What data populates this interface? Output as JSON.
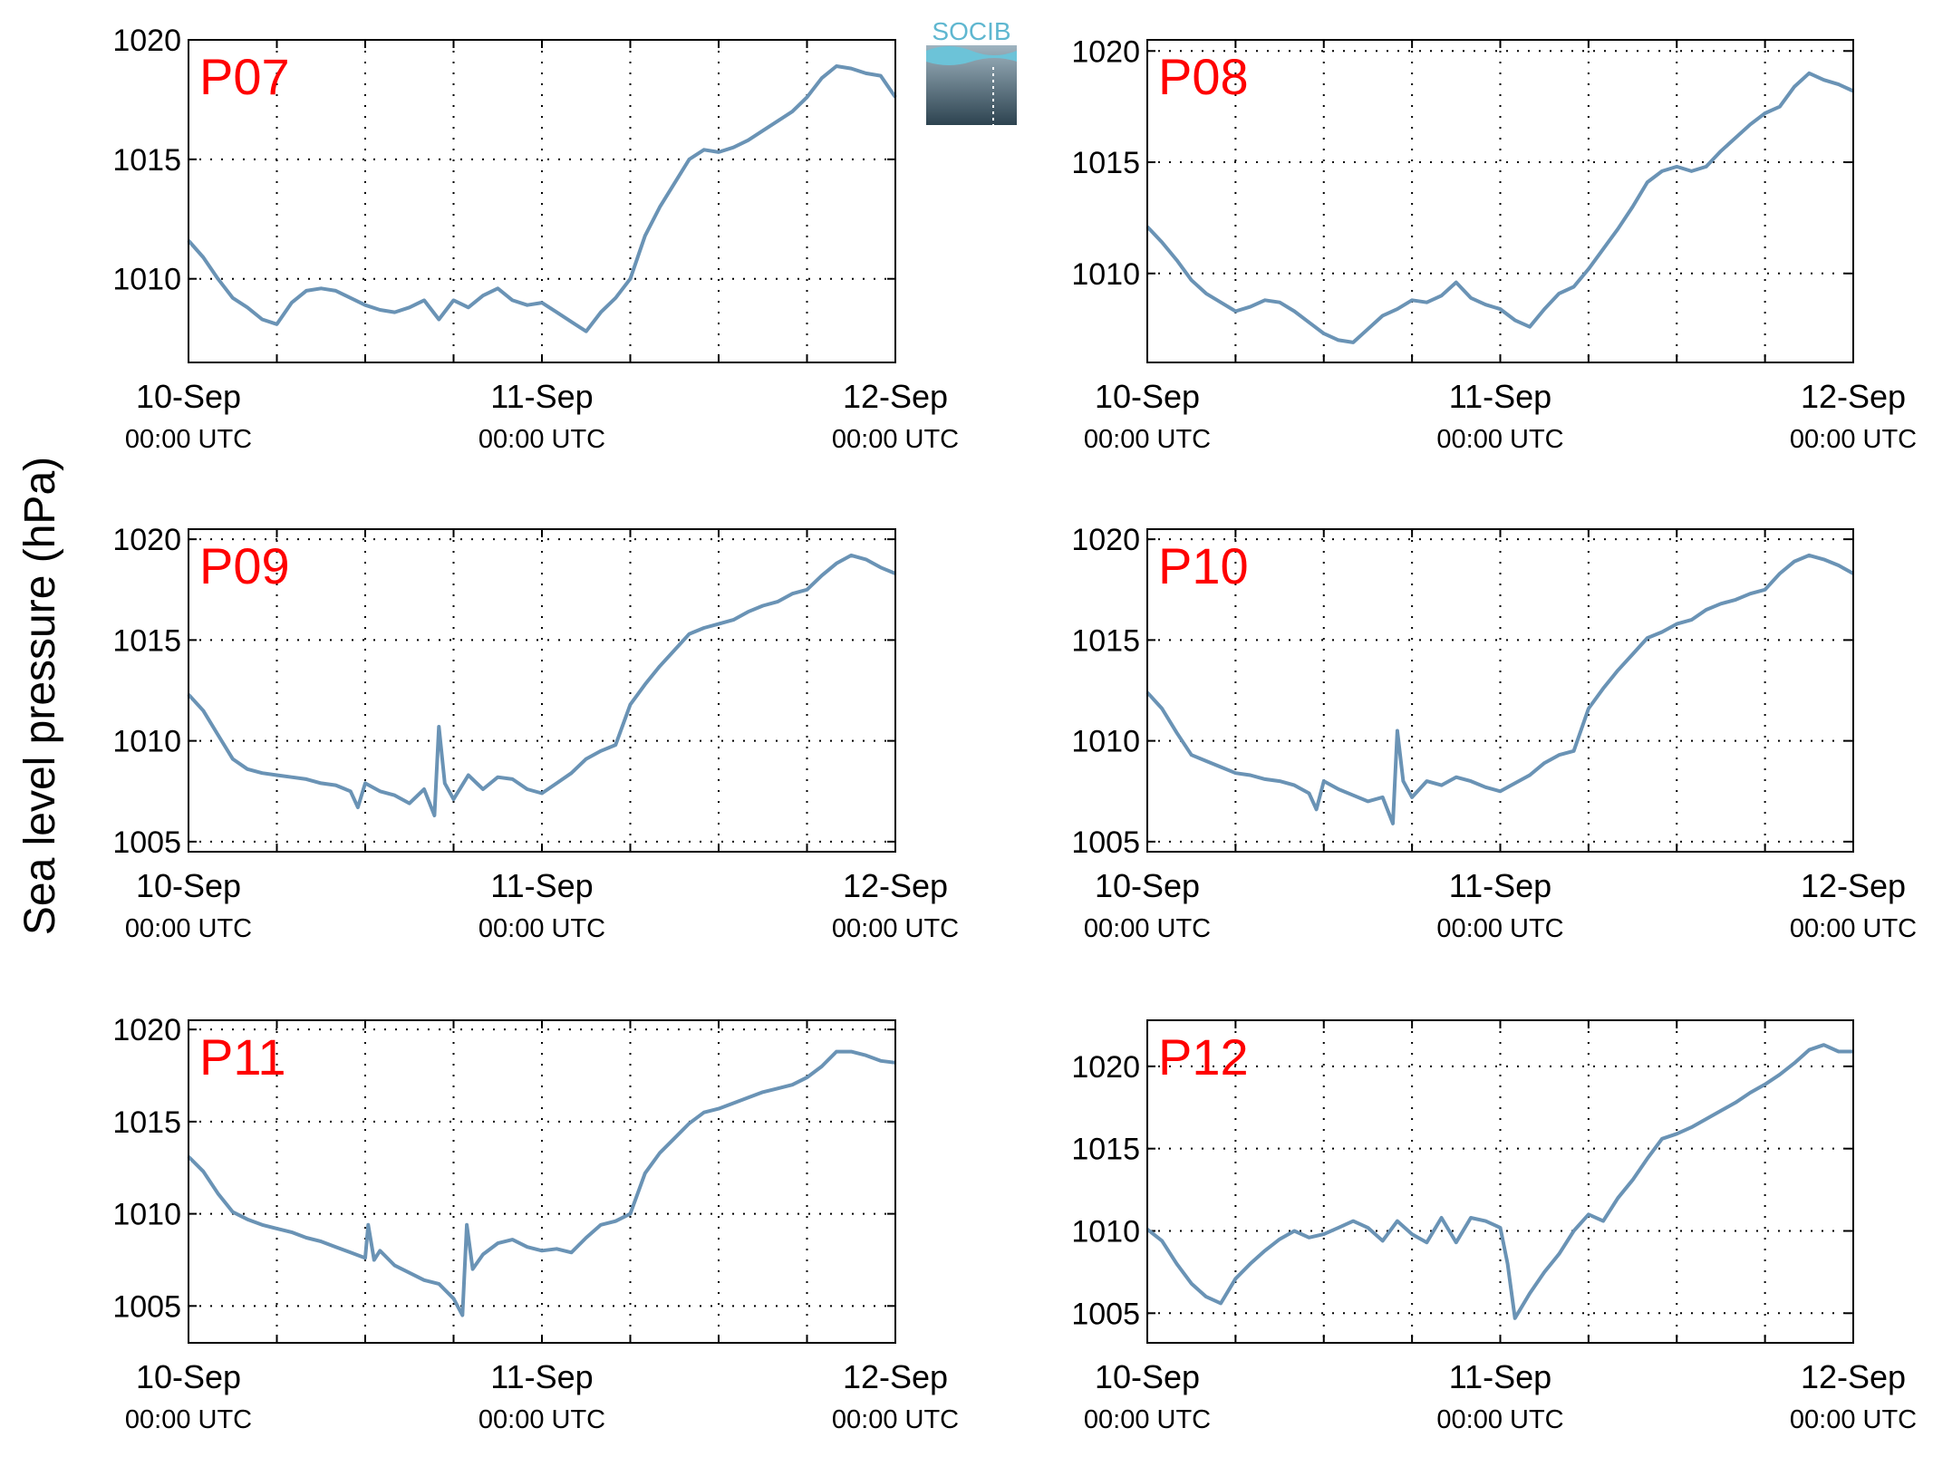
{
  "logo_text": "SOCIB",
  "y_label": "Sea level pressure (hPa)",
  "colors": {
    "series": "#6a93b5",
    "panel_label": "#ff0000",
    "axes": "#000000",
    "grid": "#000000"
  },
  "chart_data": [
    {
      "type": "line",
      "panel": "P07",
      "x_ticks": [
        "10-Sep",
        "11-Sep",
        "12-Sep"
      ],
      "x_tick_sub": "00:00 UTC",
      "xlim": [
        0,
        48
      ],
      "ylim": [
        1006.5,
        1020
      ],
      "y_ticks": [
        1010,
        1015,
        1020
      ],
      "grid": true,
      "series": [
        {
          "x": [
            0,
            1,
            2,
            3,
            4,
            5,
            6,
            7,
            8,
            9,
            10,
            11,
            12,
            13,
            14,
            15,
            16,
            17,
            18,
            19,
            20,
            21,
            22,
            23,
            24,
            25,
            26,
            27,
            28,
            29,
            30,
            31,
            32,
            33,
            34,
            35,
            36,
            37,
            38,
            39,
            40,
            41,
            42,
            43,
            44,
            45,
            46,
            47,
            48
          ],
          "y": [
            1011.6,
            1010.9,
            1010.0,
            1009.2,
            1008.8,
            1008.3,
            1008.1,
            1009.0,
            1009.5,
            1009.6,
            1009.5,
            1009.2,
            1008.9,
            1008.7,
            1008.6,
            1008.8,
            1009.1,
            1008.3,
            1009.1,
            1008.8,
            1009.3,
            1009.6,
            1009.1,
            1008.9,
            1009.0,
            1008.6,
            1008.2,
            1007.8,
            1008.6,
            1009.2,
            1010.0,
            1011.8,
            1013.0,
            1014.0,
            1015.0,
            1015.4,
            1015.3,
            1015.5,
            1015.8,
            1016.2,
            1016.6,
            1017.0,
            1017.6,
            1018.4,
            1018.9,
            1018.8,
            1018.6,
            1018.5,
            1017.6
          ]
        }
      ]
    },
    {
      "type": "line",
      "panel": "P08",
      "x_ticks": [
        "10-Sep",
        "11-Sep",
        "12-Sep"
      ],
      "x_tick_sub": "00:00 UTC",
      "xlim": [
        0,
        48
      ],
      "ylim": [
        1006,
        1020.5
      ],
      "y_ticks": [
        1010,
        1015,
        1020
      ],
      "grid": true,
      "series": [
        {
          "x": [
            0,
            1,
            2,
            3,
            4,
            5,
            6,
            7,
            8,
            9,
            10,
            11,
            12,
            13,
            14,
            15,
            16,
            17,
            18,
            19,
            20,
            21,
            22,
            23,
            24,
            25,
            26,
            27,
            28,
            29,
            30,
            31,
            32,
            33,
            34,
            35,
            36,
            37,
            38,
            39,
            40,
            41,
            42,
            43,
            44,
            45,
            46,
            47,
            48
          ],
          "y": [
            1012.1,
            1011.4,
            1010.6,
            1009.7,
            1009.1,
            1008.7,
            1008.3,
            1008.5,
            1008.8,
            1008.7,
            1008.3,
            1007.8,
            1007.3,
            1007.0,
            1006.9,
            1007.5,
            1008.1,
            1008.4,
            1008.8,
            1008.7,
            1009.0,
            1009.6,
            1008.9,
            1008.6,
            1008.4,
            1007.9,
            1007.6,
            1008.4,
            1009.1,
            1009.4,
            1010.2,
            1011.1,
            1012.0,
            1013.0,
            1014.1,
            1014.6,
            1014.8,
            1014.6,
            1014.8,
            1015.5,
            1016.1,
            1016.7,
            1017.2,
            1017.5,
            1018.4,
            1019.0,
            1018.7,
            1018.5,
            1018.2
          ]
        }
      ]
    },
    {
      "type": "line",
      "panel": "P09",
      "x_ticks": [
        "10-Sep",
        "11-Sep",
        "12-Sep"
      ],
      "x_tick_sub": "00:00 UTC",
      "xlim": [
        0,
        48
      ],
      "ylim": [
        1004.5,
        1020.5
      ],
      "y_ticks": [
        1005,
        1010,
        1015,
        1020
      ],
      "grid": true,
      "series": [
        {
          "x": [
            0,
            1,
            2,
            3,
            4,
            5,
            6,
            7,
            8,
            9,
            10,
            11,
            11.5,
            12,
            13,
            14,
            15,
            16,
            16.7,
            17,
            17.4,
            18,
            19,
            20,
            21,
            22,
            23,
            24,
            25,
            26,
            27,
            28,
            29,
            30,
            31,
            32,
            33,
            34,
            35,
            36,
            37,
            38,
            39,
            40,
            41,
            42,
            43,
            44,
            45,
            46,
            47,
            48
          ],
          "y": [
            1012.3,
            1011.5,
            1010.3,
            1009.1,
            1008.6,
            1008.4,
            1008.3,
            1008.2,
            1008.1,
            1007.9,
            1007.8,
            1007.5,
            1006.7,
            1007.9,
            1007.5,
            1007.3,
            1006.9,
            1007.6,
            1006.3,
            1010.7,
            1007.9,
            1007.1,
            1008.3,
            1007.6,
            1008.2,
            1008.1,
            1007.6,
            1007.4,
            1007.9,
            1008.4,
            1009.1,
            1009.5,
            1009.8,
            1011.8,
            1012.8,
            1013.7,
            1014.5,
            1015.3,
            1015.6,
            1015.8,
            1016.0,
            1016.4,
            1016.7,
            1016.9,
            1017.3,
            1017.5,
            1018.2,
            1018.8,
            1019.2,
            1019.0,
            1018.6,
            1018.3
          ]
        }
      ]
    },
    {
      "type": "line",
      "panel": "P10",
      "x_ticks": [
        "10-Sep",
        "11-Sep",
        "12-Sep"
      ],
      "x_tick_sub": "00:00 UTC",
      "xlim": [
        0,
        48
      ],
      "ylim": [
        1004.5,
        1020.5
      ],
      "y_ticks": [
        1005,
        1010,
        1015,
        1020
      ],
      "grid": true,
      "series": [
        {
          "x": [
            0,
            1,
            2,
            3,
            4,
            5,
            6,
            7,
            8,
            9,
            10,
            11,
            11.5,
            12,
            13,
            14,
            15,
            16,
            16.7,
            17,
            17.4,
            18,
            19,
            20,
            21,
            22,
            23,
            24,
            25,
            26,
            27,
            28,
            29,
            30,
            31,
            32,
            33,
            34,
            35,
            36,
            37,
            38,
            39,
            40,
            41,
            42,
            43,
            44,
            45,
            46,
            47,
            48
          ],
          "y": [
            1012.4,
            1011.6,
            1010.4,
            1009.3,
            1009.0,
            1008.7,
            1008.4,
            1008.3,
            1008.1,
            1008.0,
            1007.8,
            1007.4,
            1006.6,
            1008.0,
            1007.6,
            1007.3,
            1007.0,
            1007.2,
            1005.9,
            1010.5,
            1008.0,
            1007.2,
            1008.0,
            1007.8,
            1008.2,
            1008.0,
            1007.7,
            1007.5,
            1007.9,
            1008.3,
            1008.9,
            1009.3,
            1009.5,
            1011.6,
            1012.6,
            1013.5,
            1014.3,
            1015.1,
            1015.4,
            1015.8,
            1016.0,
            1016.5,
            1016.8,
            1017.0,
            1017.3,
            1017.5,
            1018.3,
            1018.9,
            1019.2,
            1019.0,
            1018.7,
            1018.3
          ]
        }
      ]
    },
    {
      "type": "line",
      "panel": "P11",
      "x_ticks": [
        "10-Sep",
        "11-Sep",
        "12-Sep"
      ],
      "x_tick_sub": "00:00 UTC",
      "xlim": [
        0,
        48
      ],
      "ylim": [
        1003,
        1020.5
      ],
      "y_ticks": [
        1005,
        1010,
        1015,
        1020
      ],
      "grid": true,
      "series": [
        {
          "x": [
            0,
            1,
            2,
            3,
            4,
            5,
            6,
            7,
            8,
            9,
            10,
            11,
            12,
            12.2,
            12.6,
            13,
            14,
            15,
            16,
            17,
            18,
            18.6,
            18.9,
            19.3,
            20,
            21,
            22,
            23,
            24,
            25,
            26,
            27,
            28,
            29,
            30,
            31,
            32,
            33,
            34,
            35,
            36,
            37,
            38,
            39,
            40,
            41,
            42,
            43,
            44,
            45,
            46,
            47,
            48
          ],
          "y": [
            1013.1,
            1012.3,
            1011.1,
            1010.1,
            1009.7,
            1009.4,
            1009.2,
            1009.0,
            1008.7,
            1008.5,
            1008.2,
            1007.9,
            1007.6,
            1009.4,
            1007.5,
            1008.0,
            1007.2,
            1006.8,
            1006.4,
            1006.2,
            1005.4,
            1004.5,
            1009.4,
            1007.0,
            1007.8,
            1008.4,
            1008.6,
            1008.2,
            1008.0,
            1008.1,
            1007.9,
            1008.7,
            1009.4,
            1009.6,
            1010.0,
            1012.2,
            1013.3,
            1014.1,
            1014.9,
            1015.5,
            1015.7,
            1016.0,
            1016.3,
            1016.6,
            1016.8,
            1017.0,
            1017.4,
            1018.0,
            1018.8,
            1018.8,
            1018.6,
            1018.3,
            1018.2
          ]
        }
      ]
    },
    {
      "type": "line",
      "panel": "P12",
      "x_ticks": [
        "10-Sep",
        "11-Sep",
        "12-Sep"
      ],
      "x_tick_sub": "00:00 UTC",
      "xlim": [
        0,
        48
      ],
      "ylim": [
        1003.2,
        1022.8
      ],
      "y_ticks": [
        1005,
        1010,
        1015,
        1020
      ],
      "grid": true,
      "series": [
        {
          "x": [
            0,
            1,
            2,
            3,
            4,
            5,
            6,
            7,
            8,
            9,
            10,
            11,
            12,
            13,
            14,
            15,
            16,
            17,
            18,
            19,
            20,
            21,
            22,
            23,
            24,
            24.5,
            25,
            26,
            27,
            28,
            29,
            30,
            31,
            32,
            33,
            34,
            35,
            36,
            37,
            38,
            39,
            40,
            41,
            42,
            43,
            44,
            45,
            46,
            47,
            48
          ],
          "y": [
            1010.1,
            1009.4,
            1008.0,
            1006.8,
            1006.0,
            1005.6,
            1007.1,
            1008.0,
            1008.8,
            1009.5,
            1010.0,
            1009.6,
            1009.8,
            1010.2,
            1010.6,
            1010.2,
            1009.4,
            1010.6,
            1009.8,
            1009.3,
            1010.8,
            1009.3,
            1010.8,
            1010.6,
            1010.2,
            1008.0,
            1004.7,
            1006.2,
            1007.5,
            1008.6,
            1010.0,
            1011.0,
            1010.6,
            1012.0,
            1013.1,
            1014.4,
            1015.6,
            1015.9,
            1016.3,
            1016.8,
            1017.3,
            1017.8,
            1018.4,
            1018.9,
            1019.5,
            1020.2,
            1021.0,
            1021.3,
            1020.9,
            1020.9
          ]
        }
      ]
    }
  ]
}
